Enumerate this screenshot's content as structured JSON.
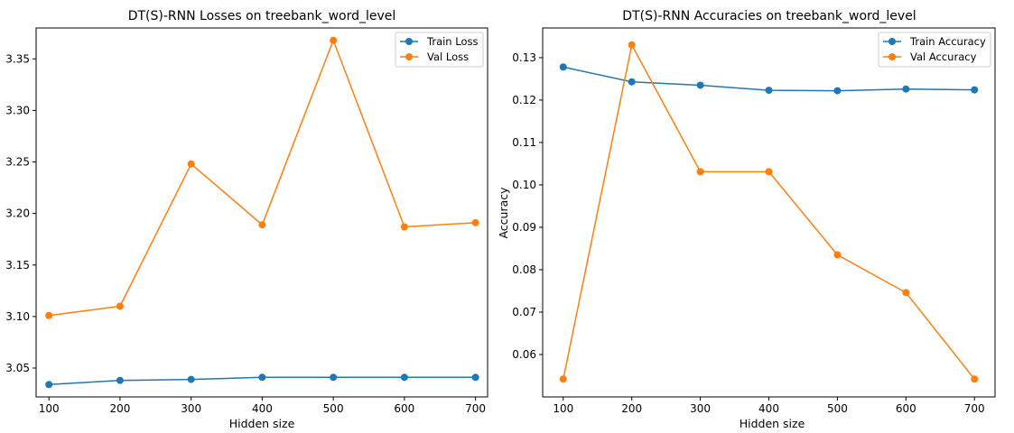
{
  "chart_data": [
    {
      "type": "line",
      "title": "DT(S)-RNN Losses on treebank_word_level",
      "xlabel": "Hidden size",
      "ylabel": "",
      "x": [
        100,
        200,
        300,
        400,
        500,
        600,
        700
      ],
      "xlim": [
        82,
        717
      ],
      "ylim": [
        3.022,
        3.38
      ],
      "xticks": [
        100,
        200,
        300,
        400,
        500,
        600,
        700
      ],
      "yticks": [
        3.05,
        3.1,
        3.15,
        3.2,
        3.25,
        3.3,
        3.35
      ],
      "ytick_decimals": 2,
      "legend_position": "top-right",
      "grid": false,
      "series": [
        {
          "name": "Train Loss",
          "color": "#1f77b4",
          "values": [
            3.034,
            3.038,
            3.039,
            3.041,
            3.041,
            3.041,
            3.041
          ]
        },
        {
          "name": "Val Loss",
          "color": "#ff7f0e",
          "values": [
            3.101,
            3.11,
            3.248,
            3.189,
            3.368,
            3.187,
            3.191
          ]
        }
      ]
    },
    {
      "type": "line",
      "title": "DT(S)-RNN Accuracies on treebank_word_level",
      "xlabel": "Hidden size",
      "ylabel": "Accuracy",
      "x": [
        100,
        200,
        300,
        400,
        500,
        600,
        700
      ],
      "xlim": [
        70,
        730
      ],
      "ylim": [
        0.05,
        0.137
      ],
      "xticks": [
        100,
        200,
        300,
        400,
        500,
        600,
        700
      ],
      "yticks": [
        0.06,
        0.07,
        0.08,
        0.09,
        0.1,
        0.11,
        0.12,
        0.13
      ],
      "ytick_decimals": 2,
      "legend_position": "top-right",
      "grid": false,
      "series": [
        {
          "name": "Train Accuracy",
          "color": "#1f77b4",
          "values": [
            0.1278,
            0.1243,
            0.1235,
            0.1223,
            0.1222,
            0.1226,
            0.1224
          ]
        },
        {
          "name": "Val Accuracy",
          "color": "#ff7f0e",
          "values": [
            0.0542,
            0.133,
            0.1031,
            0.1031,
            0.0835,
            0.0746,
            0.0542
          ]
        }
      ]
    }
  ]
}
